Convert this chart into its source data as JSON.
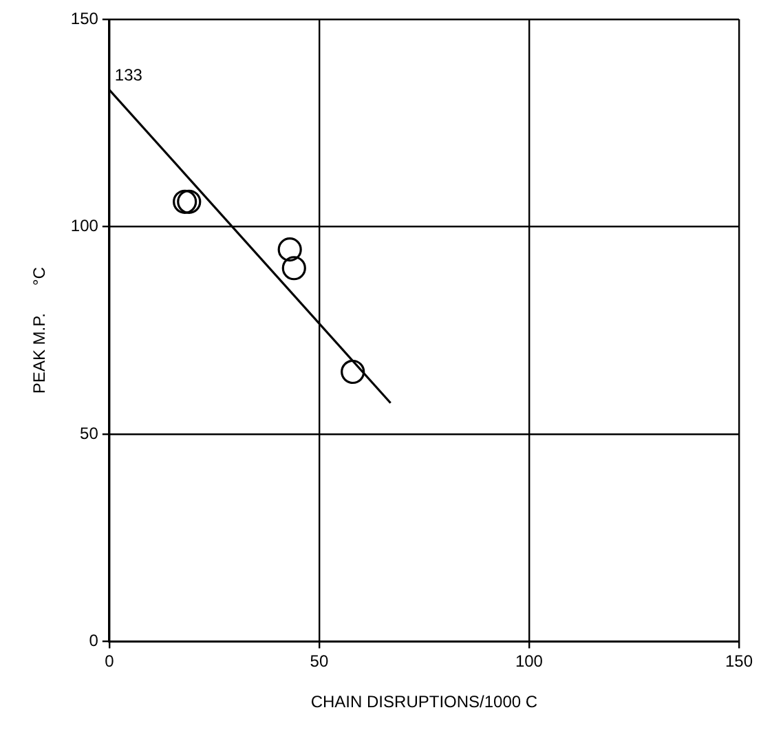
{
  "chart_data": {
    "type": "scatter",
    "xlabel": "CHAIN DISRUPTIONS/1000 C",
    "ylabel": "PEAK M.P.      °C",
    "xlim": [
      0,
      150
    ],
    "xticks": [
      0,
      50,
      100,
      150
    ],
    "ylim": [
      0,
      150
    ],
    "yticks": [
      0,
      50,
      100,
      150
    ],
    "grid": true,
    "marker": "circle",
    "series": [
      {
        "color": "#000000",
        "x": [
          18,
          19,
          43,
          44,
          58
        ],
        "values": [
          106,
          106,
          94.5,
          90,
          65
        ]
      },
      {
        "type": "line",
        "color": "#000000",
        "x": [
          0,
          67
        ],
        "values": [
          133,
          57.5
        ],
        "marker": "none",
        "line_style": "solid"
      }
    ],
    "annotations": [
      {
        "text": "133",
        "x": 0,
        "y": 133
      }
    ]
  }
}
